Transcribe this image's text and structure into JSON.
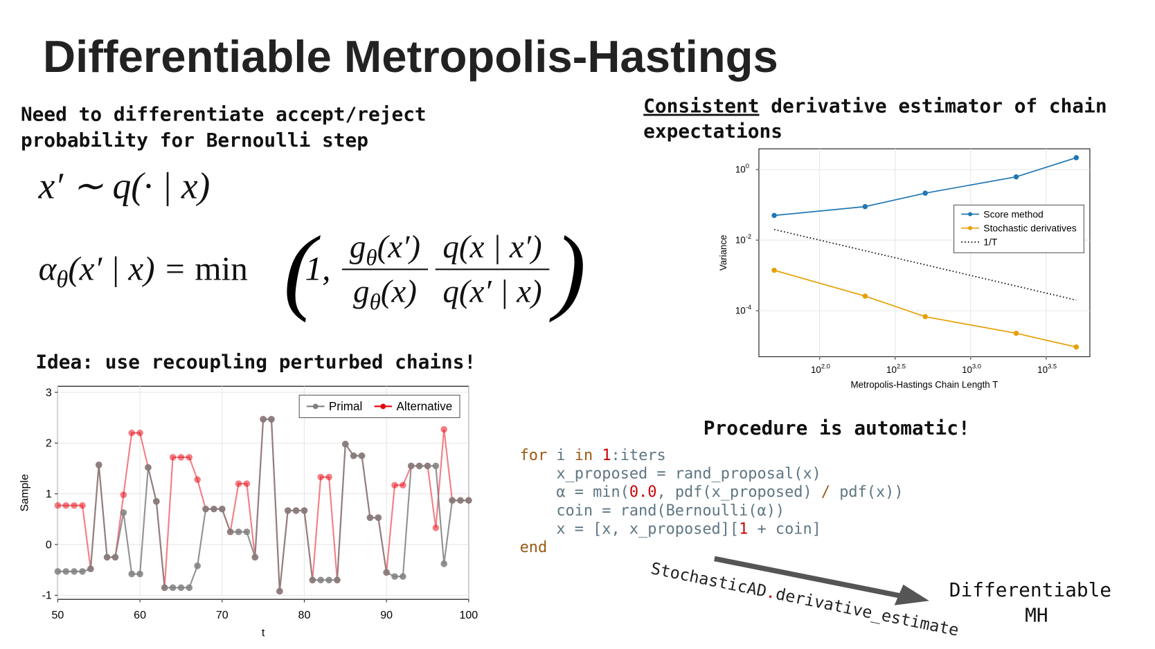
{
  "title": "Differentiable Metropolis-Hastings",
  "left": {
    "heading": [
      "Need to differentiate accept/reject",
      "probability for Bernoulli step"
    ],
    "proposal": [
      {
        "text": "x′ ∼ q(· | x)"
      }
    ],
    "acceptance": {
      "lhs": [
        {
          "text": "α"
        },
        {
          "text": "θ",
          "style": "sub"
        },
        {
          "text": "(x′ | x) = "
        },
        {
          "text": "min",
          "style": "upright"
        }
      ],
      "open": "(",
      "one": "1,",
      "num1": [
        {
          "text": "g"
        },
        {
          "text": "θ",
          "style": "sub"
        },
        {
          "text": "(x′)"
        }
      ],
      "den1": [
        {
          "text": "g"
        },
        {
          "text": "θ",
          "style": "sub"
        },
        {
          "text": "(x)"
        }
      ],
      "num2": [
        {
          "text": "q(x | x′)"
        }
      ],
      "den2": [
        {
          "text": "q(x′ | x)"
        }
      ],
      "close": ")"
    },
    "idea": "Idea: use recoupling perturbed chains!"
  },
  "right": {
    "heading": {
      "underlined": "Consistent",
      "rest": " derivative estimator of chain",
      "line2": "expectations"
    },
    "procedure": "Procedure is automatic!"
  },
  "code": [
    [
      {
        "text": "for",
        "color": "#9c5a14"
      },
      {
        "text": " i ",
        "color": "#5e7682"
      },
      {
        "text": "in",
        "color": "#9c5a14"
      },
      {
        "text": " ",
        "color": "#5e7682"
      },
      {
        "text": "1",
        "color": "#cc0000"
      },
      {
        "text": ":iters",
        "color": "#5e7682"
      }
    ],
    [
      {
        "text": "    x_proposed = rand_proposal(x)",
        "color": "#5e7682"
      }
    ],
    [
      {
        "text": "    α = min(",
        "color": "#5e7682"
      },
      {
        "text": "0.0",
        "color": "#cc0000"
      },
      {
        "text": ", pdf(x_proposed) ",
        "color": "#5e7682"
      },
      {
        "text": "/",
        "color": "#9c5a14"
      },
      {
        "text": " pdf(x))",
        "color": "#5e7682"
      }
    ],
    [
      {
        "text": "    coin = rand(Bernoulli(α))",
        "color": "#5e7682"
      }
    ],
    [
      {
        "text": "    x = [x, x_proposed][",
        "color": "#5e7682"
      },
      {
        "text": "1",
        "color": "#cc0000"
      },
      {
        "text": " + coin]",
        "color": "#5e7682"
      }
    ],
    [
      {
        "text": "end",
        "color": "#9c5a14"
      }
    ]
  ],
  "bottom": {
    "call": [
      {
        "text": "StochasticAD",
        "color": "#222222"
      },
      {
        "text": ".",
        "color": "#cc0000"
      },
      {
        "text": "derivative_estimate",
        "color": "#222222"
      }
    ],
    "result": [
      "Differentiable",
      "MH"
    ]
  },
  "chart_data": [
    {
      "type": "line",
      "xlabel": "t",
      "ylabel": "Sample",
      "x": [
        50,
        51,
        52,
        53,
        54,
        55,
        56,
        57,
        58,
        59,
        60,
        61,
        62,
        63,
        64,
        65,
        66,
        67,
        68,
        69,
        70,
        71,
        72,
        73,
        74,
        75,
        76,
        77,
        78,
        79,
        80,
        81,
        82,
        83,
        84,
        85,
        86,
        87,
        88,
        89,
        90,
        91,
        92,
        93,
        94,
        95,
        96,
        97,
        98,
        99,
        100
      ],
      "series": [
        {
          "name": "Primal",
          "color": "#7f7f7f",
          "values": [
            -0.53,
            -0.53,
            -0.53,
            -0.53,
            -0.48,
            1.57,
            -0.25,
            -0.25,
            0.63,
            -0.58,
            -0.58,
            1.52,
            0.85,
            -0.85,
            -0.85,
            -0.85,
            -0.85,
            -0.42,
            0.7,
            0.7,
            0.7,
            0.25,
            0.25,
            0.25,
            -0.25,
            2.47,
            2.47,
            -0.92,
            0.67,
            0.67,
            0.67,
            -0.7,
            -0.7,
            -0.7,
            -0.7,
            1.98,
            1.75,
            1.75,
            0.53,
            0.53,
            -0.55,
            -0.63,
            -0.63,
            1.55,
            1.55,
            1.55,
            1.55,
            -0.38,
            0.87,
            0.87,
            0.87
          ]
        },
        {
          "name": "Alternative",
          "color": "#e8000b",
          "values": [
            0.77,
            0.77,
            0.77,
            0.77,
            -0.48,
            1.57,
            -0.25,
            -0.25,
            0.98,
            2.2,
            2.2,
            1.52,
            0.85,
            -0.85,
            1.72,
            1.72,
            1.72,
            1.28,
            0.7,
            0.7,
            0.7,
            0.25,
            1.2,
            1.2,
            -0.25,
            2.47,
            2.47,
            -0.92,
            0.67,
            0.67,
            0.67,
            -0.7,
            1.33,
            1.33,
            -0.7,
            1.98,
            1.75,
            1.75,
            0.53,
            0.53,
            -0.55,
            1.17,
            1.17,
            1.55,
            1.55,
            1.55,
            0.33,
            2.27,
            0.87,
            0.87,
            0.87
          ]
        }
      ],
      "xlim": [
        50,
        100
      ],
      "ylim": [
        -1.08,
        3.12
      ],
      "xticks": [
        50,
        60,
        70,
        80,
        90,
        100
      ],
      "yticks": [
        -1,
        0,
        1,
        2,
        3
      ],
      "grid": true,
      "legend": "top-right"
    },
    {
      "type": "line",
      "xlabel": "Metropolis-Hastings Chain Length T",
      "ylabel": "Variance",
      "x": [
        50,
        200,
        500,
        2000,
        5000
      ],
      "series": [
        {
          "name": "Score method",
          "color": "#1f77b4",
          "values": [
            0.05,
            0.089,
            0.214,
            0.62,
            2.16
          ]
        },
        {
          "name": "Stochastic derivatives",
          "color": "#e69f00",
          "values": [
            0.0014,
            0.00026,
            6.8e-05,
            2.3e-05,
            9.4e-06
          ]
        },
        {
          "name": "1/T",
          "color": "#000000",
          "dash": "dotted",
          "marker": false,
          "values": [
            0.02,
            0.005,
            0.002,
            0.0005,
            0.0002
          ]
        }
      ],
      "xscale": "log",
      "yscale": "log",
      "xlim": [
        39.6,
        6150
      ],
      "ylim": [
        5e-06,
        3.86
      ],
      "xticks": [
        {
          "value": 100,
          "label": "10",
          "exponent": "2.0"
        },
        {
          "value": 316.23,
          "label": "10",
          "exponent": "2.5"
        },
        {
          "value": 1000,
          "label": "10",
          "exponent": "3.0"
        },
        {
          "value": 3162.28,
          "label": "10",
          "exponent": "3.5"
        }
      ],
      "yticks": [
        {
          "value": 1,
          "label": "10",
          "exponent": "0"
        },
        {
          "value": 0.01,
          "label": "10",
          "exponent": "-2"
        },
        {
          "value": 0.0001,
          "label": "10",
          "exponent": "-4"
        }
      ],
      "grid": true,
      "legend": "top-right"
    }
  ]
}
